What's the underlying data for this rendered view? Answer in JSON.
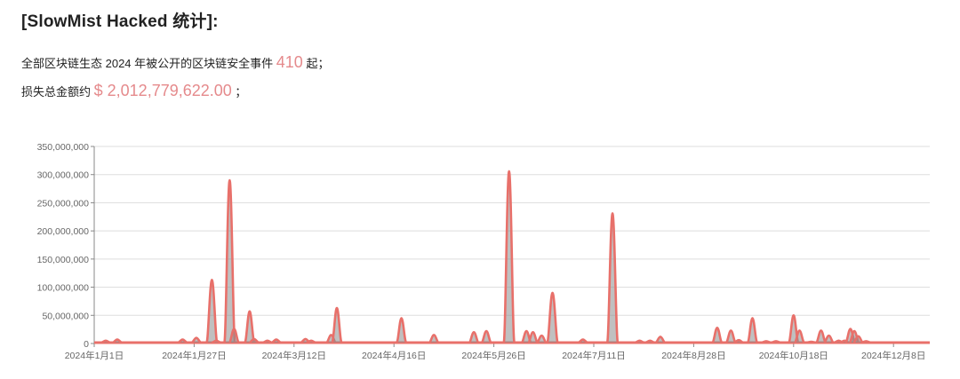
{
  "header": {
    "title": "[SlowMist Hacked 统计]:",
    "line1_prefix": "全部区块链生态 2024 年被公开的区块链安全事件",
    "line1_count": "410",
    "line1_suffix": "起；",
    "line2_prefix": "损失总金额约",
    "line2_amount": "$ 2,012,779,622.00",
    "line2_suffix": "；"
  },
  "colors": {
    "accent": "#e58a8c",
    "line": "#e8706a",
    "grid": "#dddddd"
  },
  "chart_data": {
    "type": "line",
    "title": "",
    "xlabel": "",
    "ylabel": "",
    "ylim": [
      0,
      350000000
    ],
    "y_ticks": [
      "0",
      "50,000,000",
      "100,000,000",
      "150,000,000",
      "200,000,000",
      "250,000,000",
      "300,000,000",
      "350,000,000"
    ],
    "x_ticks": [
      "2024年1月1日",
      "2024年1月27日",
      "2024年3月12日",
      "2024年4月16日",
      "2024年5月26日",
      "2024年7月11日",
      "2024年8月28日",
      "2024年10月18日",
      "2024年12月8日"
    ],
    "grid": true,
    "points": [
      [
        "2024-01-04",
        5000000
      ],
      [
        "2024-01-07",
        7000000
      ],
      [
        "2024-01-24",
        7000000
      ],
      [
        "2024-01-28",
        10000000
      ],
      [
        "2024-02-04",
        113000000
      ],
      [
        "2024-02-06",
        5000000
      ],
      [
        "2024-02-12",
        290000000
      ],
      [
        "2024-02-14",
        26000000
      ],
      [
        "2024-02-21",
        57000000
      ],
      [
        "2024-02-23",
        8000000
      ],
      [
        "2024-02-29",
        5000000
      ],
      [
        "2024-03-04",
        7000000
      ],
      [
        "2024-03-16",
        8000000
      ],
      [
        "2024-03-18",
        5000000
      ],
      [
        "2024-03-25",
        15000000
      ],
      [
        "2024-03-27",
        63000000
      ],
      [
        "2024-04-19",
        45000000
      ],
      [
        "2024-05-02",
        15000000
      ],
      [
        "2024-05-18",
        20000000
      ],
      [
        "2024-05-23",
        22000000
      ],
      [
        "2024-06-02",
        306000000
      ],
      [
        "2024-06-10",
        22000000
      ],
      [
        "2024-06-13",
        20000000
      ],
      [
        "2024-06-17",
        14000000
      ],
      [
        "2024-06-22",
        90000000
      ],
      [
        "2024-07-06",
        7000000
      ],
      [
        "2024-07-20",
        231000000
      ],
      [
        "2024-08-02",
        5000000
      ],
      [
        "2024-08-07",
        5000000
      ],
      [
        "2024-08-12",
        12000000
      ],
      [
        "2024-09-09",
        28000000
      ],
      [
        "2024-09-16",
        23000000
      ],
      [
        "2024-09-20",
        6000000
      ],
      [
        "2024-09-27",
        45000000
      ],
      [
        "2024-10-04",
        4000000
      ],
      [
        "2024-10-09",
        4000000
      ],
      [
        "2024-10-18",
        50000000
      ],
      [
        "2024-10-21",
        23000000
      ],
      [
        "2024-10-27",
        3000000
      ],
      [
        "2024-11-01",
        23000000
      ],
      [
        "2024-11-05",
        14000000
      ],
      [
        "2024-11-10",
        5000000
      ],
      [
        "2024-11-13",
        5000000
      ],
      [
        "2024-11-16",
        26000000
      ],
      [
        "2024-11-18",
        22000000
      ],
      [
        "2024-11-20",
        13000000
      ],
      [
        "2024-11-24",
        4000000
      ]
    ]
  }
}
